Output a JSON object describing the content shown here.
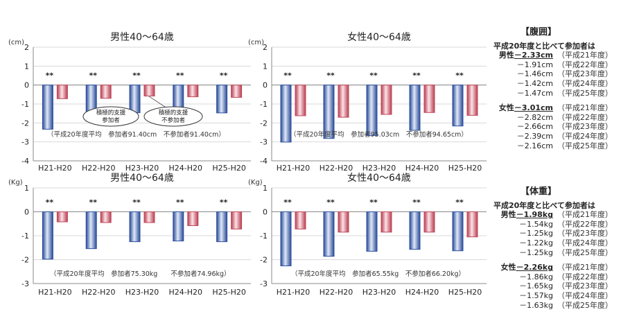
{
  "chart_data": [
    {
      "type": "bar",
      "title": "男性40〜64歳",
      "ylabel": "(cm)",
      "ylim": [
        -4,
        2
      ],
      "yticks": [
        "2",
        "1",
        "0",
        "-1",
        "-2",
        "-3",
        "-4"
      ],
      "categories": [
        "H21-H20",
        "H22-H20",
        "H23-H20",
        "H24-H20",
        "H25-H20"
      ],
      "series": [
        {
          "color": "#2b4f9e",
          "values": [
            -2.33,
            -1.91,
            -1.46,
            -1.42,
            -1.47
          ]
        },
        {
          "color": "#c0485a",
          "values": [
            -0.72,
            -0.7,
            -0.58,
            -0.62,
            -0.65
          ]
        }
      ],
      "significance": [
        "**",
        "**",
        "**",
        "**",
        "**"
      ],
      "note": "（平成20年度平均　参加者91.40cm　不参加者91.40cm）",
      "callouts": [
        "積極的支援 参加者",
        "積極的支援 不参加者"
      ]
    },
    {
      "type": "bar",
      "title": "女性40〜64歳",
      "ylabel": "(cm)",
      "ylim": [
        -4,
        2
      ],
      "yticks": [
        "2",
        "1",
        "0",
        "-1",
        "-2",
        "-3",
        "-4"
      ],
      "categories": [
        "H21-H20",
        "H22-H20",
        "H23-H20",
        "H24-H20",
        "H25-H20"
      ],
      "series": [
        {
          "color": "#2b4f9e",
          "values": [
            -3.01,
            -2.82,
            -2.66,
            -2.39,
            -2.16
          ]
        },
        {
          "color": "#c0485a",
          "values": [
            -1.62,
            -1.7,
            -1.55,
            -1.45,
            -1.6
          ]
        }
      ],
      "significance": [
        "**",
        "**",
        "**",
        "**",
        "**"
      ],
      "note": "（平成20年度平均　参加者95.03cm　不参加者94.65cm）"
    },
    {
      "type": "bar",
      "title": "男性40〜64歳",
      "ylabel": "(Kg)",
      "ylim": [
        -3,
        1
      ],
      "yticks": [
        "1",
        "0",
        "-1",
        "-2",
        "-3"
      ],
      "categories": [
        "H21-H20",
        "H22-H20",
        "H23-H20",
        "H24-H20",
        "H25-H20"
      ],
      "series": [
        {
          "color": "#2b4f9e",
          "values": [
            -1.98,
            -1.54,
            -1.25,
            -1.22,
            -1.25
          ]
        },
        {
          "color": "#c0485a",
          "values": [
            -0.42,
            -0.45,
            -0.45,
            -0.58,
            -0.72
          ]
        }
      ],
      "significance": [
        "**",
        "**",
        "**",
        "**",
        "**"
      ],
      "note": "（平成20年度平均　参加者75.30kg　　不参加者74.96kg）"
    },
    {
      "type": "bar",
      "title": "女性40〜64歳",
      "ylabel": "(Kg)",
      "ylim": [
        -3,
        1
      ],
      "yticks": [
        "1",
        "0",
        "-1",
        "-2",
        "-3"
      ],
      "categories": [
        "H21-H20",
        "H22-H20",
        "H23-H20",
        "H24-H20",
        "H25-H20"
      ],
      "series": [
        {
          "color": "#2b4f9e",
          "values": [
            -2.26,
            -1.86,
            -1.65,
            -1.57,
            -1.63
          ]
        },
        {
          "color": "#c0485a",
          "values": [
            -0.72,
            -0.85,
            -0.85,
            -0.85,
            -1.05
          ]
        }
      ],
      "significance": [
        "**",
        "**",
        "**",
        "**",
        "**"
      ],
      "note": "（平成20年度平均　参加者65.55kg　不参加者66.20kg）"
    }
  ],
  "summary": {
    "waist": {
      "heading": "【腹囲】",
      "lead": "平成20年度と比べて参加者は",
      "male_label": "男性",
      "male": [
        {
          "value": "－2.33cm",
          "year": "（平成21年度）"
        },
        {
          "value": "－1.91cm",
          "year": "（平成22年度）"
        },
        {
          "value": "－1.46cm",
          "year": "（平成23年度）"
        },
        {
          "value": "－1.42cm",
          "year": "（平成24年度）"
        },
        {
          "value": "－1.47cm",
          "year": "（平成25年度）"
        }
      ],
      "female_label": "女性",
      "female": [
        {
          "value": "－3.01cm",
          "year": "（平成21年度）"
        },
        {
          "value": "－2.82cm",
          "year": "（平成22年度）"
        },
        {
          "value": "－2.66cm",
          "year": "（平成23年度）"
        },
        {
          "value": "－2.39cm",
          "year": "（平成24年度）"
        },
        {
          "value": "－2.16cm",
          "year": "（平成25年度）"
        }
      ]
    },
    "weight": {
      "heading": "【体重】",
      "lead": "平成20年度と比べて参加者は",
      "male_label": "男性",
      "male": [
        {
          "value": "－1.98kg",
          "year": "（平成21年度）"
        },
        {
          "value": "－1.54kg",
          "year": "（平成22年度）"
        },
        {
          "value": "－1.25kg",
          "year": "（平成23年度）"
        },
        {
          "value": "－1.22kg",
          "year": "（平成24年度）"
        },
        {
          "value": "－1.25kg",
          "year": "（平成25年度）"
        }
      ],
      "female_label": "女性",
      "female": [
        {
          "value": "－2.26kg",
          "year": "（平成21年度）"
        },
        {
          "value": "－1.86kg",
          "year": "（平成22年度）"
        },
        {
          "value": "－1.65kg",
          "year": "（平成23年度）"
        },
        {
          "value": "－1.57kg",
          "year": "（平成24年度）"
        },
        {
          "value": "－1.63kg",
          "year": "（平成25年度）"
        }
      ]
    }
  }
}
